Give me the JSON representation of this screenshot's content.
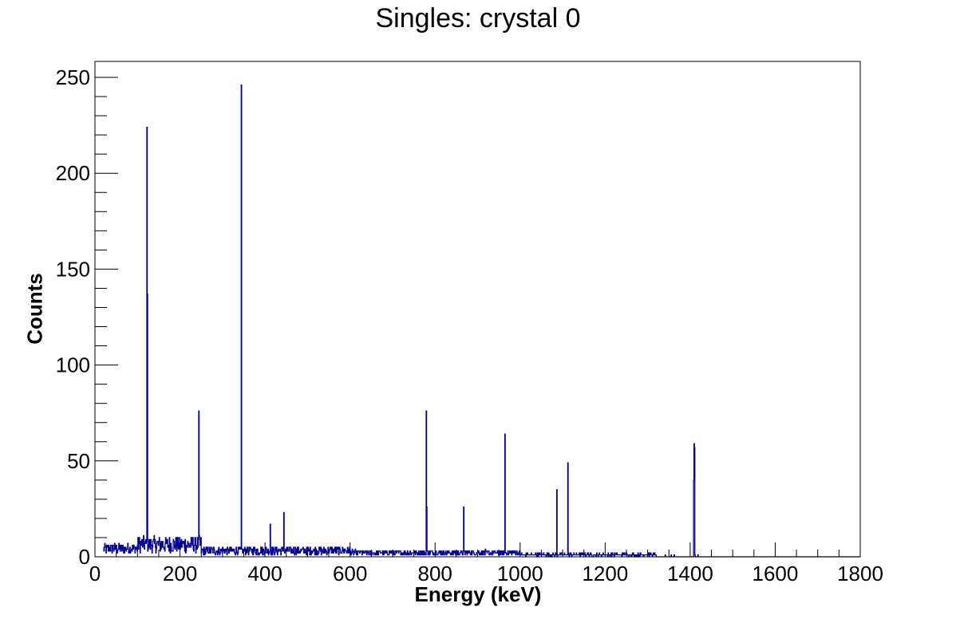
{
  "chart_data": {
    "type": "bar",
    "subtype": "histogram",
    "title": "Singles: crystal 0",
    "xlabel": "Energy (keV)",
    "ylabel": "Counts",
    "xlim": [
      0,
      1800
    ],
    "ylim": [
      0,
      258
    ],
    "xticks": [
      0,
      200,
      400,
      600,
      800,
      1000,
      1200,
      1400,
      1600,
      1800
    ],
    "yticks": [
      0,
      50,
      100,
      150,
      200,
      250
    ],
    "grid": false,
    "legend": null,
    "line_color": "#000099",
    "background_counts": {
      "description": "Noisy continuum baseline",
      "ranges": [
        {
          "x_start": 20,
          "x_end": 100,
          "level": 4
        },
        {
          "x_start": 100,
          "x_end": 250,
          "level": 6
        },
        {
          "x_start": 250,
          "x_end": 600,
          "level": 3
        },
        {
          "x_start": 600,
          "x_end": 1000,
          "level": 2
        },
        {
          "x_start": 1000,
          "x_end": 1320,
          "level": 1
        }
      ]
    },
    "peaks": [
      {
        "energy": 122,
        "counts": 224
      },
      {
        "energy": 123,
        "counts": 137
      },
      {
        "energy": 244,
        "counts": 76
      },
      {
        "energy": 344,
        "counts": 246
      },
      {
        "energy": 412,
        "counts": 17
      },
      {
        "energy": 444,
        "counts": 23
      },
      {
        "energy": 779,
        "counts": 76
      },
      {
        "energy": 780,
        "counts": 26
      },
      {
        "energy": 867,
        "counts": 26
      },
      {
        "energy": 964,
        "counts": 64
      },
      {
        "energy": 1086,
        "counts": 35
      },
      {
        "energy": 1112,
        "counts": 49
      },
      {
        "energy": 1408,
        "counts": 40
      },
      {
        "energy": 1409,
        "counts": 59
      },
      {
        "energy": 1410,
        "counts": 57
      }
    ]
  }
}
